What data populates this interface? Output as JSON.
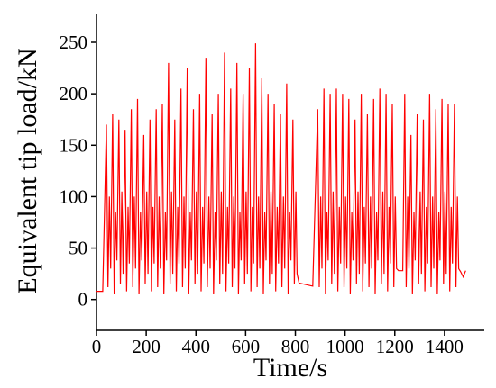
{
  "chart_data": {
    "type": "line",
    "xlabel": "Time/s",
    "ylabel": "Equivalent tip load/kN",
    "xlim": [
      0,
      1560
    ],
    "ylim": [
      -30,
      278
    ],
    "xticks": [
      0,
      200,
      400,
      600,
      800,
      1000,
      1200,
      1400
    ],
    "yticks": [
      0,
      50,
      100,
      150,
      200,
      250
    ],
    "series": [
      {
        "color": "#ff0000",
        "x": [
          0,
          25,
          40,
          46,
          52,
          57,
          65,
          71,
          77,
          82,
          90,
          96,
          102,
          107,
          115,
          121,
          127,
          132,
          140,
          146,
          152,
          157,
          165,
          171,
          177,
          182,
          190,
          196,
          202,
          207,
          215,
          221,
          227,
          232,
          240,
          246,
          252,
          257,
          265,
          271,
          277,
          282,
          290,
          296,
          302,
          307,
          315,
          321,
          327,
          332,
          340,
          346,
          352,
          357,
          365,
          371,
          377,
          382,
          390,
          396,
          402,
          407,
          415,
          421,
          427,
          432,
          440,
          446,
          452,
          457,
          465,
          471,
          477,
          482,
          490,
          496,
          502,
          507,
          515,
          521,
          527,
          532,
          540,
          546,
          552,
          557,
          565,
          571,
          577,
          582,
          590,
          596,
          602,
          607,
          615,
          621,
          627,
          632,
          640,
          646,
          652,
          657,
          665,
          671,
          677,
          682,
          690,
          696,
          702,
          707,
          715,
          721,
          727,
          732,
          740,
          746,
          752,
          757,
          765,
          771,
          777,
          782,
          790,
          796,
          802,
          807,
          815,
          870,
          890,
          896,
          902,
          907,
          915,
          921,
          927,
          932,
          940,
          946,
          952,
          957,
          965,
          971,
          977,
          982,
          990,
          996,
          1002,
          1007,
          1015,
          1021,
          1027,
          1032,
          1040,
          1046,
          1052,
          1057,
          1065,
          1071,
          1077,
          1082,
          1090,
          1096,
          1102,
          1107,
          1115,
          1121,
          1127,
          1132,
          1140,
          1146,
          1152,
          1157,
          1165,
          1171,
          1177,
          1182,
          1190,
          1196,
          1202,
          1207,
          1215,
          1232,
          1240,
          1246,
          1252,
          1257,
          1265,
          1271,
          1277,
          1282,
          1290,
          1296,
          1302,
          1307,
          1315,
          1321,
          1327,
          1332,
          1340,
          1346,
          1352,
          1357,
          1365,
          1371,
          1377,
          1382,
          1390,
          1396,
          1402,
          1407,
          1415,
          1421,
          1427,
          1432,
          1440,
          1446,
          1452,
          1457,
          1465,
          1475,
          1485
        ],
        "values": [
          8,
          8,
          170,
          12,
          100,
          30,
          180,
          5,
          85,
          38,
          175,
          15,
          105,
          25,
          165,
          8,
          90,
          35,
          185,
          12,
          100,
          30,
          195,
          5,
          85,
          38,
          160,
          15,
          105,
          25,
          175,
          8,
          90,
          35,
          185,
          12,
          100,
          30,
          190,
          5,
          85,
          38,
          230,
          15,
          105,
          25,
          175,
          8,
          90,
          35,
          205,
          12,
          100,
          30,
          225,
          5,
          85,
          38,
          185,
          15,
          105,
          25,
          200,
          8,
          90,
          35,
          235,
          12,
          100,
          30,
          180,
          5,
          85,
          38,
          200,
          15,
          105,
          25,
          240,
          8,
          90,
          35,
          205,
          12,
          100,
          30,
          230,
          5,
          85,
          38,
          200,
          15,
          105,
          25,
          225,
          8,
          90,
          35,
          249,
          12,
          100,
          30,
          215,
          5,
          85,
          38,
          200,
          15,
          105,
          25,
          190,
          8,
          90,
          35,
          180,
          12,
          100,
          30,
          210,
          5,
          85,
          38,
          175,
          15,
          105,
          25,
          16,
          13,
          185,
          12,
          100,
          30,
          205,
          5,
          85,
          38,
          200,
          15,
          105,
          25,
          205,
          8,
          90,
          35,
          200,
          12,
          100,
          30,
          195,
          5,
          85,
          38,
          175,
          15,
          105,
          25,
          200,
          8,
          90,
          35,
          180,
          12,
          100,
          30,
          195,
          5,
          85,
          38,
          205,
          15,
          105,
          25,
          200,
          8,
          90,
          35,
          190,
          12,
          100,
          30,
          28,
          28,
          200,
          12,
          100,
          30,
          160,
          5,
          85,
          38,
          180,
          15,
          105,
          25,
          175,
          8,
          90,
          35,
          200,
          12,
          100,
          30,
          185,
          5,
          85,
          38,
          195,
          15,
          105,
          25,
          190,
          8,
          90,
          35,
          190,
          12,
          100,
          30,
          27,
          22,
          28
        ]
      }
    ]
  }
}
